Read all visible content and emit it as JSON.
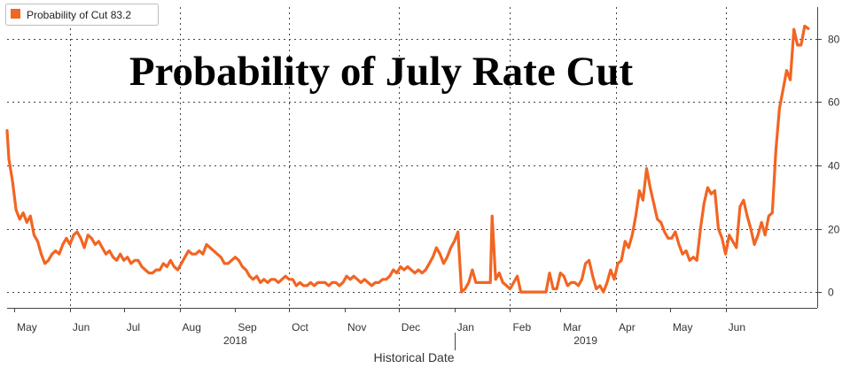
{
  "chart_data": {
    "type": "line",
    "title": "Probability of July Rate Cut",
    "xlabel": "Historical Date",
    "ylabel": "",
    "ylim": [
      -5,
      90
    ],
    "yticks": [
      0,
      20,
      40,
      60,
      80
    ],
    "grid": true,
    "legend": {
      "position": "top-left",
      "label": "Probability of Cut 83.2"
    },
    "x_tick_labels": [
      {
        "label": "May",
        "at": "2018-05-01"
      },
      {
        "label": "Jun",
        "at": "2018-06-01"
      },
      {
        "label": "Jul",
        "at": "2018-07-01"
      },
      {
        "label": "Aug",
        "at": "2018-08-01"
      },
      {
        "label": "Sep",
        "at": "2018-09-01"
      },
      {
        "label": "Oct",
        "at": "2018-10-01"
      },
      {
        "label": "Nov",
        "at": "2018-11-01"
      },
      {
        "label": "Dec",
        "at": "2018-12-01"
      },
      {
        "label": "Jan",
        "at": "2019-01-01"
      },
      {
        "label": "Feb",
        "at": "2019-02-01"
      },
      {
        "label": "Mar",
        "at": "2019-03-01"
      },
      {
        "label": "Apr",
        "at": "2019-04-01"
      },
      {
        "label": "May",
        "at": "2019-05-01"
      },
      {
        "label": "Jun",
        "at": "2019-06-01"
      }
    ],
    "year_labels": [
      {
        "label": "2018",
        "at": "2018-09-01"
      },
      {
        "label": "2019",
        "at": "2019-03-15"
      }
    ],
    "x_gridlines": [
      "2018-06-01",
      "2018-08-01",
      "2018-10-01",
      "2018-12-01",
      "2019-02-01",
      "2019-04-01",
      "2019-06-01"
    ],
    "year_divider": "2019-01-01",
    "series": [
      {
        "name": "Probability of Cut",
        "color": "#f26522",
        "points": [
          [
            "2018-04-27",
            51
          ],
          [
            "2018-04-28",
            42
          ],
          [
            "2018-04-30",
            35
          ],
          [
            "2018-05-02",
            26
          ],
          [
            "2018-05-04",
            23
          ],
          [
            "2018-05-06",
            25
          ],
          [
            "2018-05-08",
            22
          ],
          [
            "2018-05-10",
            24
          ],
          [
            "2018-05-12",
            18
          ],
          [
            "2018-05-14",
            16
          ],
          [
            "2018-05-16",
            12
          ],
          [
            "2018-05-18",
            9
          ],
          [
            "2018-05-20",
            10
          ],
          [
            "2018-05-22",
            12
          ],
          [
            "2018-05-24",
            13
          ],
          [
            "2018-05-26",
            12
          ],
          [
            "2018-05-28",
            15
          ],
          [
            "2018-05-30",
            17
          ],
          [
            "2018-06-01",
            15
          ],
          [
            "2018-06-03",
            18
          ],
          [
            "2018-06-05",
            19
          ],
          [
            "2018-06-07",
            17
          ],
          [
            "2018-06-09",
            14
          ],
          [
            "2018-06-11",
            18
          ],
          [
            "2018-06-13",
            17
          ],
          [
            "2018-06-15",
            15
          ],
          [
            "2018-06-17",
            16
          ],
          [
            "2018-06-19",
            14
          ],
          [
            "2018-06-21",
            12
          ],
          [
            "2018-06-23",
            13
          ],
          [
            "2018-06-25",
            11
          ],
          [
            "2018-06-27",
            10
          ],
          [
            "2018-06-29",
            12
          ],
          [
            "2018-07-01",
            10
          ],
          [
            "2018-07-03",
            11
          ],
          [
            "2018-07-05",
            9
          ],
          [
            "2018-07-07",
            10
          ],
          [
            "2018-07-09",
            10
          ],
          [
            "2018-07-11",
            8
          ],
          [
            "2018-07-13",
            7
          ],
          [
            "2018-07-15",
            6
          ],
          [
            "2018-07-17",
            6
          ],
          [
            "2018-07-19",
            7
          ],
          [
            "2018-07-21",
            7
          ],
          [
            "2018-07-23",
            9
          ],
          [
            "2018-07-25",
            8
          ],
          [
            "2018-07-27",
            10
          ],
          [
            "2018-07-29",
            8
          ],
          [
            "2018-07-31",
            7
          ],
          [
            "2018-08-02",
            9
          ],
          [
            "2018-08-04",
            11
          ],
          [
            "2018-08-06",
            13
          ],
          [
            "2018-08-08",
            12
          ],
          [
            "2018-08-10",
            12
          ],
          [
            "2018-08-12",
            13
          ],
          [
            "2018-08-14",
            12
          ],
          [
            "2018-08-16",
            15
          ],
          [
            "2018-08-18",
            14
          ],
          [
            "2018-08-20",
            13
          ],
          [
            "2018-08-22",
            12
          ],
          [
            "2018-08-24",
            11
          ],
          [
            "2018-08-26",
            9
          ],
          [
            "2018-08-28",
            9
          ],
          [
            "2018-08-30",
            10
          ],
          [
            "2018-09-01",
            11
          ],
          [
            "2018-09-03",
            10
          ],
          [
            "2018-09-05",
            8
          ],
          [
            "2018-09-07",
            7
          ],
          [
            "2018-09-09",
            5
          ],
          [
            "2018-09-11",
            4
          ],
          [
            "2018-09-13",
            5
          ],
          [
            "2018-09-15",
            3
          ],
          [
            "2018-09-17",
            4
          ],
          [
            "2018-09-19",
            3
          ],
          [
            "2018-09-21",
            4
          ],
          [
            "2018-09-23",
            4
          ],
          [
            "2018-09-25",
            3
          ],
          [
            "2018-09-27",
            4
          ],
          [
            "2018-09-29",
            5
          ],
          [
            "2018-10-01",
            4
          ],
          [
            "2018-10-03",
            4
          ],
          [
            "2018-10-05",
            2
          ],
          [
            "2018-10-07",
            3
          ],
          [
            "2018-10-09",
            2
          ],
          [
            "2018-10-11",
            2
          ],
          [
            "2018-10-13",
            3
          ],
          [
            "2018-10-15",
            2
          ],
          [
            "2018-10-17",
            3
          ],
          [
            "2018-10-19",
            3
          ],
          [
            "2018-10-21",
            3
          ],
          [
            "2018-10-23",
            2
          ],
          [
            "2018-10-25",
            3
          ],
          [
            "2018-10-27",
            3
          ],
          [
            "2018-10-29",
            2
          ],
          [
            "2018-10-31",
            3
          ],
          [
            "2018-11-02",
            5
          ],
          [
            "2018-11-04",
            4
          ],
          [
            "2018-11-06",
            5
          ],
          [
            "2018-11-08",
            4
          ],
          [
            "2018-11-10",
            3
          ],
          [
            "2018-11-12",
            4
          ],
          [
            "2018-11-14",
            3
          ],
          [
            "2018-11-16",
            2
          ],
          [
            "2018-11-18",
            3
          ],
          [
            "2018-11-20",
            3
          ],
          [
            "2018-11-22",
            4
          ],
          [
            "2018-11-24",
            4
          ],
          [
            "2018-11-26",
            5
          ],
          [
            "2018-11-28",
            7
          ],
          [
            "2018-11-30",
            6
          ],
          [
            "2018-12-02",
            8
          ],
          [
            "2018-12-04",
            7
          ],
          [
            "2018-12-06",
            8
          ],
          [
            "2018-12-08",
            7
          ],
          [
            "2018-12-10",
            6
          ],
          [
            "2018-12-12",
            7
          ],
          [
            "2018-12-14",
            6
          ],
          [
            "2018-12-16",
            7
          ],
          [
            "2018-12-18",
            9
          ],
          [
            "2018-12-20",
            11
          ],
          [
            "2018-12-22",
            14
          ],
          [
            "2018-12-24",
            12
          ],
          [
            "2018-12-26",
            9
          ],
          [
            "2018-12-28",
            11
          ],
          [
            "2018-12-30",
            14
          ],
          [
            "2019-01-01",
            16
          ],
          [
            "2019-01-03",
            19
          ],
          [
            "2019-01-05",
            0
          ],
          [
            "2019-01-07",
            1
          ],
          [
            "2019-01-09",
            3
          ],
          [
            "2019-01-11",
            7
          ],
          [
            "2019-01-13",
            3
          ],
          [
            "2019-01-15",
            3
          ],
          [
            "2019-01-17",
            3
          ],
          [
            "2019-01-19",
            3
          ],
          [
            "2019-01-21",
            3
          ],
          [
            "2019-01-22",
            24
          ],
          [
            "2019-01-24",
            4
          ],
          [
            "2019-01-26",
            6
          ],
          [
            "2019-01-28",
            3
          ],
          [
            "2019-01-30",
            2
          ],
          [
            "2019-02-01",
            1
          ],
          [
            "2019-02-03",
            3
          ],
          [
            "2019-02-05",
            5
          ],
          [
            "2019-02-07",
            0
          ],
          [
            "2019-02-09",
            0
          ],
          [
            "2019-02-11",
            0
          ],
          [
            "2019-02-13",
            0
          ],
          [
            "2019-02-15",
            0
          ],
          [
            "2019-02-17",
            0
          ],
          [
            "2019-02-19",
            0
          ],
          [
            "2019-02-21",
            0
          ],
          [
            "2019-02-23",
            6
          ],
          [
            "2019-02-25",
            1
          ],
          [
            "2019-02-27",
            1
          ],
          [
            "2019-03-01",
            6
          ],
          [
            "2019-03-03",
            5
          ],
          [
            "2019-03-05",
            2
          ],
          [
            "2019-03-07",
            3
          ],
          [
            "2019-03-09",
            3
          ],
          [
            "2019-03-11",
            2
          ],
          [
            "2019-03-13",
            4
          ],
          [
            "2019-03-15",
            9
          ],
          [
            "2019-03-17",
            10
          ],
          [
            "2019-03-19",
            5
          ],
          [
            "2019-03-21",
            1
          ],
          [
            "2019-03-23",
            2
          ],
          [
            "2019-03-25",
            0
          ],
          [
            "2019-03-27",
            3
          ],
          [
            "2019-03-29",
            7
          ],
          [
            "2019-03-31",
            4
          ],
          [
            "2019-04-02",
            9
          ],
          [
            "2019-04-04",
            10
          ],
          [
            "2019-04-06",
            16
          ],
          [
            "2019-04-08",
            14
          ],
          [
            "2019-04-10",
            18
          ],
          [
            "2019-04-12",
            24
          ],
          [
            "2019-04-14",
            32
          ],
          [
            "2019-04-16",
            29
          ],
          [
            "2019-04-18",
            39
          ],
          [
            "2019-04-20",
            33
          ],
          [
            "2019-04-22",
            28
          ],
          [
            "2019-04-24",
            23
          ],
          [
            "2019-04-26",
            22
          ],
          [
            "2019-04-28",
            19
          ],
          [
            "2019-04-30",
            17
          ],
          [
            "2019-05-02",
            17
          ],
          [
            "2019-05-04",
            19
          ],
          [
            "2019-05-06",
            15
          ],
          [
            "2019-05-08",
            12
          ],
          [
            "2019-05-10",
            13
          ],
          [
            "2019-05-12",
            10
          ],
          [
            "2019-05-14",
            11
          ],
          [
            "2019-05-16",
            10
          ],
          [
            "2019-05-18",
            20
          ],
          [
            "2019-05-20",
            28
          ],
          [
            "2019-05-22",
            33
          ],
          [
            "2019-05-24",
            31
          ],
          [
            "2019-05-26",
            32
          ],
          [
            "2019-05-28",
            20
          ],
          [
            "2019-05-30",
            17
          ],
          [
            "2019-06-01",
            12
          ],
          [
            "2019-06-03",
            18
          ],
          [
            "2019-06-05",
            16
          ],
          [
            "2019-06-07",
            14
          ],
          [
            "2019-06-09",
            27
          ],
          [
            "2019-06-11",
            29
          ],
          [
            "2019-06-13",
            24
          ],
          [
            "2019-06-15",
            20
          ],
          [
            "2019-06-17",
            15
          ],
          [
            "2019-06-19",
            18
          ],
          [
            "2019-06-21",
            22
          ],
          [
            "2019-06-23",
            18
          ],
          [
            "2019-06-25",
            24
          ],
          [
            "2019-06-27",
            25
          ],
          [
            "2019-06-29",
            45
          ],
          [
            "2019-07-01",
            58
          ],
          [
            "2019-07-03",
            64
          ],
          [
            "2019-07-05",
            70
          ],
          [
            "2019-07-07",
            67
          ],
          [
            "2019-07-09",
            83
          ],
          [
            "2019-07-11",
            78
          ],
          [
            "2019-07-13",
            78
          ],
          [
            "2019-07-15",
            84
          ],
          [
            "2019-07-17",
            83.2
          ]
        ]
      }
    ]
  }
}
